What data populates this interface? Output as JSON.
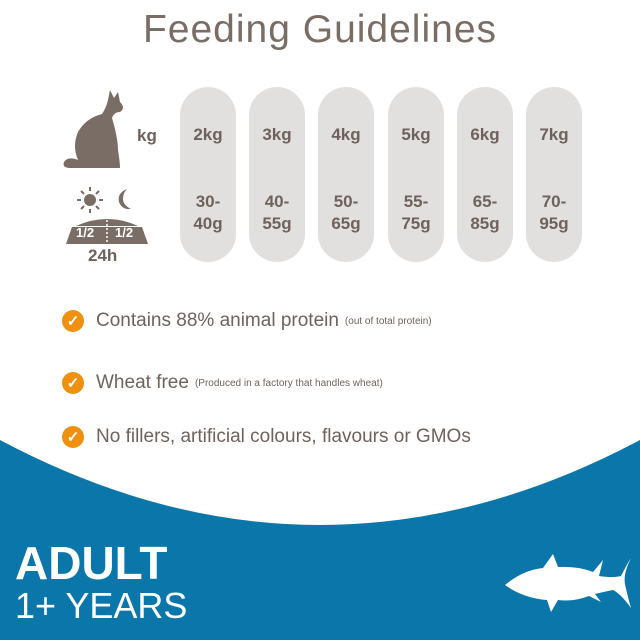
{
  "title": "Feeding Guidelines",
  "weight_label": "kg",
  "time_label": "24h",
  "bowl_split": [
    "1/2",
    "1/2"
  ],
  "columns": [
    {
      "weight": "2kg",
      "grams": "30-\n40g"
    },
    {
      "weight": "3kg",
      "grams": "40-\n55g"
    },
    {
      "weight": "4kg",
      "grams": "50-\n65g"
    },
    {
      "weight": "5kg",
      "grams": "55-\n75g"
    },
    {
      "weight": "6kg",
      "grams": "65-\n85g"
    },
    {
      "weight": "7kg",
      "grams": "70-\n95g"
    }
  ],
  "features": [
    {
      "text": "Contains 88% animal protein",
      "note": "(out of total protein)"
    },
    {
      "text": "Wheat free",
      "note": "(Produced in a factory that handles wheat)"
    },
    {
      "text": "No fillers, artificial colours, flavours or GMOs",
      "note": ""
    }
  ],
  "banner": {
    "line1": "ADULT",
    "line2": "1+ YEARS"
  },
  "colors": {
    "text": "#6f625c",
    "pill": "#e2e0df",
    "check": "#f0900f",
    "blue": "#0a76aa"
  },
  "icons": [
    "cat-icon",
    "sun-icon",
    "moon-icon",
    "bowl-icon",
    "check-icon",
    "fish-icon"
  ]
}
